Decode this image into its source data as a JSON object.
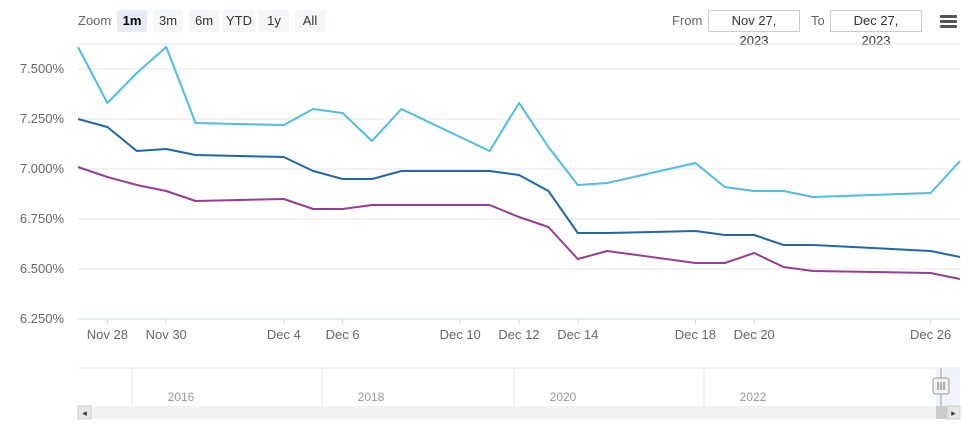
{
  "toolbar": {
    "zoom_label": "Zoom",
    "zoom_buttons": [
      "1m",
      "3m",
      "6m",
      "YTD",
      "1y",
      "All"
    ],
    "active_zoom": "1m",
    "from_label": "From",
    "from_value": "Nov 27, 2023",
    "to_label": "To",
    "to_value": "Dec 27, 2023",
    "menu_icon": "hamburger-menu-icon"
  },
  "chart_data": {
    "type": "line",
    "x": [
      "2023-11-27",
      "2023-11-28",
      "2023-11-29",
      "2023-11-30",
      "2023-12-01",
      "2023-12-04",
      "2023-12-05",
      "2023-12-06",
      "2023-12-07",
      "2023-12-08",
      "2023-12-11",
      "2023-12-12",
      "2023-12-13",
      "2023-12-14",
      "2023-12-15",
      "2023-12-18",
      "2023-12-19",
      "2023-12-20",
      "2023-12-21",
      "2023-12-22",
      "2023-12-26",
      "2023-12-27"
    ],
    "x_tick_labels": [
      "Nov 28",
      "Nov 30",
      "Dec 4",
      "Dec 6",
      "Dec 10",
      "Dec 12",
      "Dec 14",
      "Dec 18",
      "Dec 20",
      "Dec 26"
    ],
    "y_tick_labels": [
      "7.500%",
      "7.250%",
      "7.000%",
      "6.750%",
      "6.500%",
      "6.250%"
    ],
    "ylim": [
      6.25,
      7.625
    ],
    "series": [
      {
        "color": "#4dbde3",
        "values": [
          7.61,
          7.33,
          7.48,
          7.61,
          7.23,
          7.22,
          7.3,
          7.28,
          7.14,
          7.3,
          7.09,
          7.33,
          7.11,
          6.92,
          6.93,
          7.03,
          6.91,
          6.89,
          6.89,
          6.86,
          6.88,
          7.04
        ]
      },
      {
        "color": "#1f67a8",
        "values": [
          7.25,
          7.21,
          7.09,
          7.1,
          7.07,
          7.06,
          6.99,
          6.95,
          6.95,
          6.99,
          6.99,
          6.97,
          6.89,
          6.68,
          6.68,
          6.69,
          6.67,
          6.67,
          6.62,
          6.62,
          6.59,
          6.56
        ]
      },
      {
        "color": "#9a3b96",
        "values": [
          7.01,
          6.96,
          6.92,
          6.89,
          6.84,
          6.85,
          6.8,
          6.8,
          6.82,
          6.82,
          6.82,
          6.76,
          6.71,
          6.55,
          6.59,
          6.53,
          6.53,
          6.58,
          6.51,
          6.49,
          6.48,
          6.45
        ]
      }
    ],
    "grid": true,
    "legend": "none"
  },
  "navigator": {
    "year_labels": [
      "2016",
      "2018",
      "2020",
      "2022"
    ],
    "scroll_left_arrow": "◂",
    "scroll_right_arrow": "▸"
  }
}
